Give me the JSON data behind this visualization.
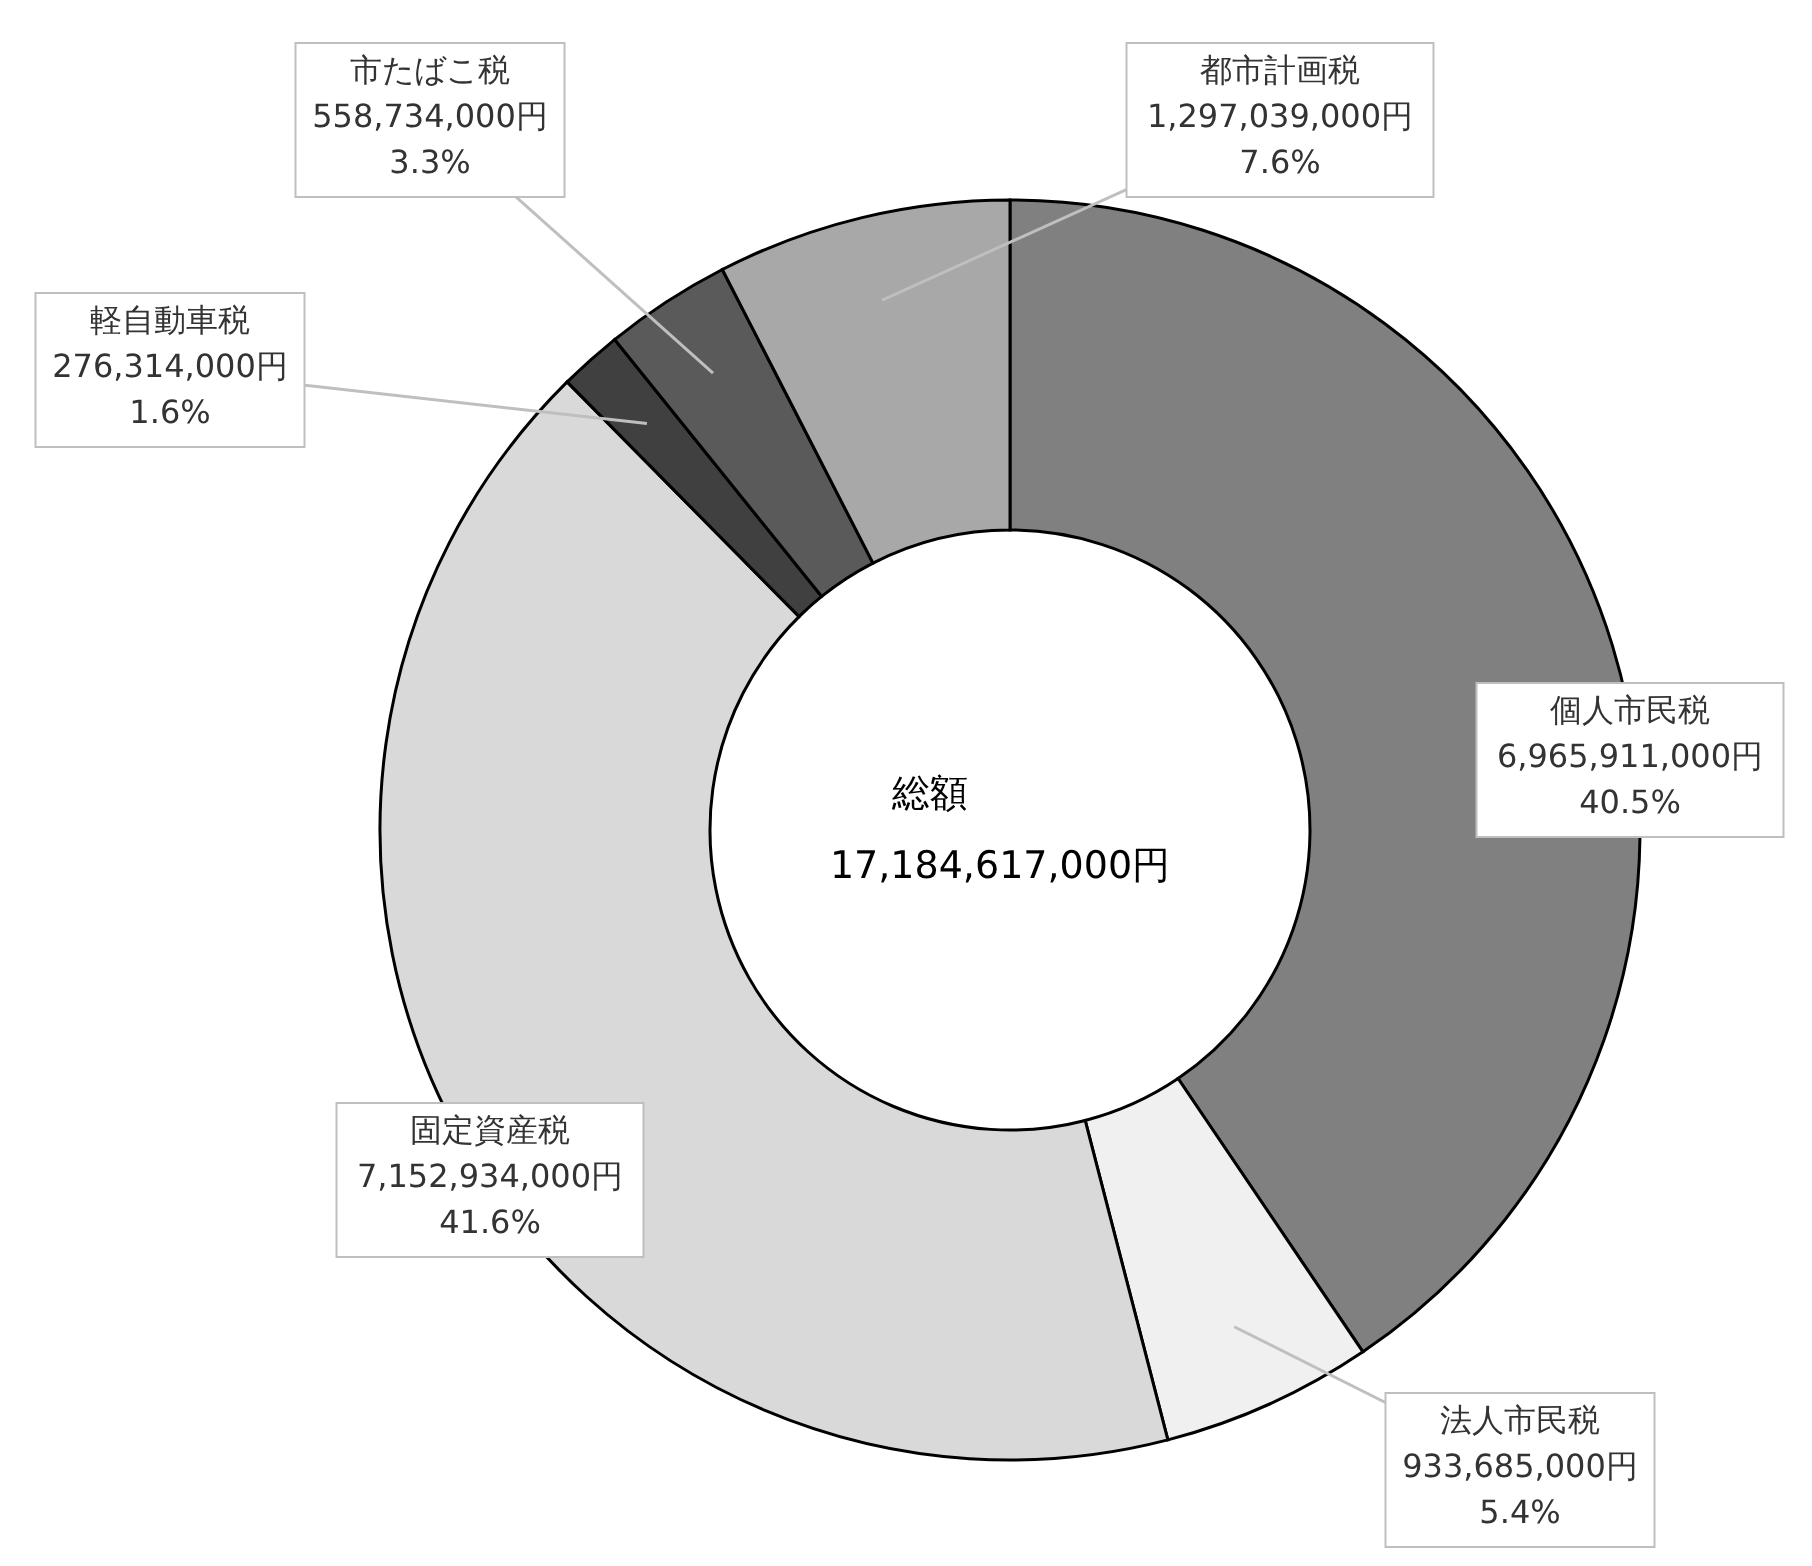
{
  "chart_data": {
    "type": "donut",
    "categories": [
      "個人市民税",
      "法人市民税",
      "固定資産税",
      "軽自動車税",
      "市たばこ税",
      "都市計画税"
    ],
    "values": [
      6965911000,
      933685000,
      7152934000,
      276314000,
      558734000,
      1297039000
    ],
    "value_labels": [
      "6,965,911,000円\n40.5%",
      "933,685,000円\n5.4%",
      "7,152,934,000円\n41.6%",
      "276,314,000円\n1.6%",
      "558,734,000円\n3.3%",
      "1,297,039,000円\n7.6%"
    ],
    "colors": [
      "#808080",
      "#f0f0f0",
      "#d9d9d9",
      "#404040",
      "#5a5a5a",
      "#a8a8a8"
    ],
    "annotations": [
      "総額",
      "17,184,617,000円"
    ]
  }
}
